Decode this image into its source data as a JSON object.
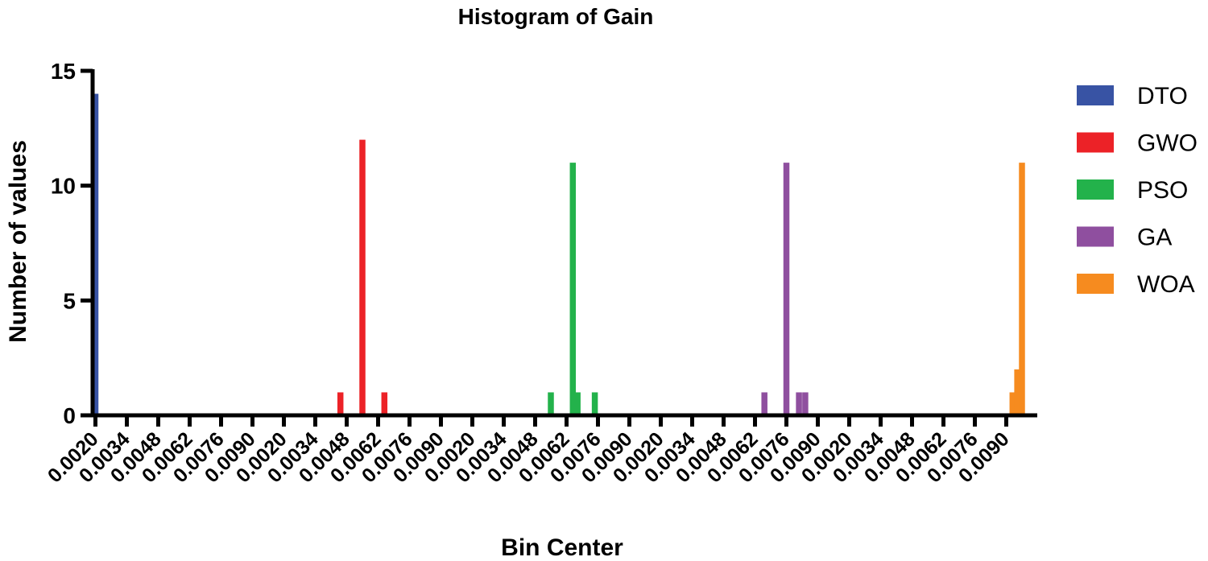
{
  "chart_data": {
    "type": "bar",
    "title": "Histogram of Gain",
    "xlabel": "Bin Center",
    "ylabel": "Number of values",
    "ylim": [
      0,
      15
    ],
    "yticks": [
      0,
      5,
      10,
      15
    ],
    "xtick_labels": [
      "0.0020",
      "0.0034",
      "0.0048",
      "0.0062",
      "0.0076",
      "0.0090",
      "0.0020",
      "0.0034",
      "0.0048",
      "0.0062",
      "0.0076",
      "0.0090",
      "0.0020",
      "0.0034",
      "0.0048",
      "0.0062",
      "0.0076",
      "0.0090",
      "0.0020",
      "0.0034",
      "0.0048",
      "0.0062",
      "0.0076",
      "0.0090",
      "0.0020",
      "0.0034",
      "0.0048",
      "0.0062",
      "0.0076",
      "0.0090"
    ],
    "legend_position": "right",
    "series": [
      {
        "name": "DTO",
        "color": "#3853a4",
        "bars": [
          {
            "tick": 0.0,
            "value": 14
          }
        ]
      },
      {
        "name": "GWO",
        "color": "#ec2227",
        "bars": [
          {
            "tick": 7.8,
            "value": 1
          },
          {
            "tick": 8.5,
            "value": 12
          },
          {
            "tick": 9.2,
            "value": 1
          }
        ]
      },
      {
        "name": "PSO",
        "color": "#23b24b",
        "bars": [
          {
            "tick": 14.5,
            "value": 1
          },
          {
            "tick": 15.2,
            "value": 11
          },
          {
            "tick": 15.35,
            "value": 1
          },
          {
            "tick": 15.9,
            "value": 1
          }
        ]
      },
      {
        "name": "GA",
        "color": "#8f4f9f",
        "bars": [
          {
            "tick": 21.3,
            "value": 1
          },
          {
            "tick": 22.0,
            "value": 11
          },
          {
            "tick": 22.4,
            "value": 1
          },
          {
            "tick": 22.6,
            "value": 1
          }
        ]
      },
      {
        "name": "WOA",
        "color": "#f68b1f",
        "bars": [
          {
            "tick": 29.2,
            "value": 1
          },
          {
            "tick": 29.35,
            "value": 2
          },
          {
            "tick": 29.5,
            "value": 11
          }
        ]
      }
    ]
  }
}
